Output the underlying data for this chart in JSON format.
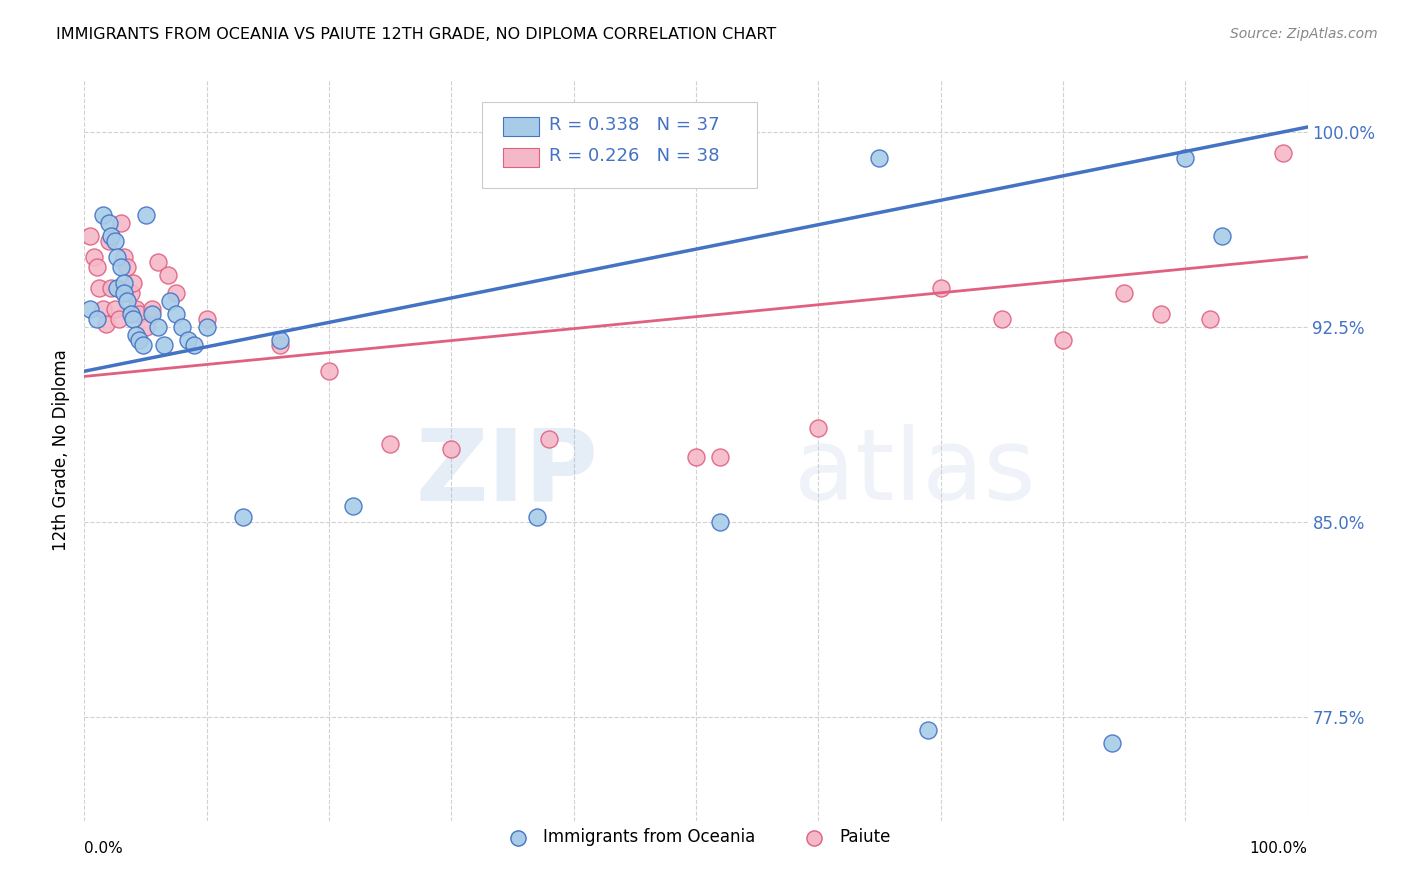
{
  "title": "IMMIGRANTS FROM OCEANIA VS PAIUTE 12TH GRADE, NO DIPLOMA CORRELATION CHART",
  "source": "Source: ZipAtlas.com",
  "ylabel": "12th Grade, No Diploma",
  "series1_label": "Immigrants from Oceania",
  "series2_label": "Paiute",
  "series1_R": "0.338",
  "series1_N": "37",
  "series2_R": "0.226",
  "series2_N": "38",
  "series1_color": "#a8cce8",
  "series2_color": "#f4b8c8",
  "line1_color": "#4472c4",
  "line2_color": "#e06080",
  "ytick_labels": [
    "77.5%",
    "85.0%",
    "92.5%",
    "100.0%"
  ],
  "ytick_values": [
    0.775,
    0.85,
    0.925,
    1.0
  ],
  "xlim": [
    0.0,
    1.0
  ],
  "ylim": [
    0.735,
    1.02
  ],
  "watermark_zip": "ZIP",
  "watermark_atlas": "atlas",
  "series1_x": [
    0.005,
    0.01,
    0.015,
    0.02,
    0.022,
    0.025,
    0.027,
    0.027,
    0.03,
    0.032,
    0.032,
    0.035,
    0.038,
    0.04,
    0.042,
    0.045,
    0.048,
    0.05,
    0.055,
    0.06,
    0.065,
    0.07,
    0.075,
    0.08,
    0.085,
    0.09,
    0.1,
    0.13,
    0.16,
    0.22,
    0.37,
    0.52,
    0.69,
    0.84,
    0.9,
    0.93,
    0.65
  ],
  "series1_y": [
    0.932,
    0.928,
    0.968,
    0.965,
    0.96,
    0.958,
    0.952,
    0.94,
    0.948,
    0.942,
    0.938,
    0.935,
    0.93,
    0.928,
    0.922,
    0.92,
    0.918,
    0.968,
    0.93,
    0.925,
    0.918,
    0.935,
    0.93,
    0.925,
    0.92,
    0.918,
    0.925,
    0.852,
    0.92,
    0.856,
    0.852,
    0.85,
    0.77,
    0.765,
    0.99,
    0.96,
    0.99
  ],
  "series2_x": [
    0.005,
    0.008,
    0.01,
    0.012,
    0.015,
    0.018,
    0.02,
    0.022,
    0.025,
    0.028,
    0.03,
    0.032,
    0.035,
    0.038,
    0.04,
    0.042,
    0.045,
    0.05,
    0.055,
    0.06,
    0.068,
    0.075,
    0.1,
    0.16,
    0.2,
    0.25,
    0.3,
    0.38,
    0.5,
    0.52,
    0.6,
    0.7,
    0.75,
    0.8,
    0.85,
    0.88,
    0.92,
    0.98
  ],
  "series2_y": [
    0.96,
    0.952,
    0.948,
    0.94,
    0.932,
    0.926,
    0.958,
    0.94,
    0.932,
    0.928,
    0.965,
    0.952,
    0.948,
    0.938,
    0.942,
    0.932,
    0.93,
    0.925,
    0.932,
    0.95,
    0.945,
    0.938,
    0.928,
    0.918,
    0.908,
    0.88,
    0.878,
    0.882,
    0.875,
    0.875,
    0.886,
    0.94,
    0.928,
    0.92,
    0.938,
    0.93,
    0.928,
    0.992
  ],
  "line1_y_start": 0.908,
  "line1_y_end": 1.002,
  "line2_y_start": 0.906,
  "line2_y_end": 0.952
}
